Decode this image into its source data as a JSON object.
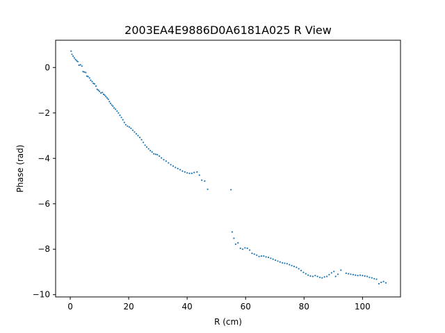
{
  "chart_data": {
    "type": "scatter",
    "title": "2003EA4E9886D0A6181A025 R View",
    "xlabel": "R (cm)",
    "ylabel": "Phase (rad)",
    "xlim": [
      -5,
      113
    ],
    "ylim": [
      -10.1,
      1.2
    ],
    "xticks": [
      0,
      20,
      40,
      60,
      80,
      100
    ],
    "yticks": [
      0,
      -2,
      -4,
      -6,
      -8,
      -10
    ],
    "grid": false,
    "marker_color": "#1f77b4",
    "series": [
      {
        "points": [
          [
            0.3,
            0.72
          ],
          [
            0.6,
            0.58
          ],
          [
            1.0,
            0.5
          ],
          [
            1.4,
            0.42
          ],
          [
            1.8,
            0.35
          ],
          [
            2.2,
            0.3
          ],
          [
            2.6,
            0.26
          ],
          [
            3.0,
            0.1
          ],
          [
            3.5,
            0.12
          ],
          [
            4.0,
            0.06
          ],
          [
            4.4,
            -0.18
          ],
          [
            4.8,
            -0.2
          ],
          [
            5.3,
            -0.22
          ],
          [
            5.7,
            -0.38
          ],
          [
            6.1,
            -0.4
          ],
          [
            6.6,
            -0.46
          ],
          [
            7.0,
            -0.56
          ],
          [
            7.5,
            -0.62
          ],
          [
            7.9,
            -0.7
          ],
          [
            8.3,
            -0.72
          ],
          [
            8.8,
            -0.82
          ],
          [
            9.2,
            -0.96
          ],
          [
            9.6,
            -1.0
          ],
          [
            10.0,
            -1.05
          ],
          [
            10.5,
            -1.12
          ],
          [
            11.0,
            -1.1
          ],
          [
            11.4,
            -1.18
          ],
          [
            11.8,
            -1.22
          ],
          [
            12.2,
            -1.28
          ],
          [
            12.6,
            -1.34
          ],
          [
            13.0,
            -1.4
          ],
          [
            13.4,
            -1.5
          ],
          [
            13.8,
            -1.58
          ],
          [
            14.2,
            -1.65
          ],
          [
            14.6,
            -1.7
          ],
          [
            15.0,
            -1.78
          ],
          [
            15.5,
            -1.84
          ],
          [
            16.0,
            -1.92
          ],
          [
            16.5,
            -2.0
          ],
          [
            17.0,
            -2.1
          ],
          [
            17.5,
            -2.2
          ],
          [
            18.0,
            -2.3
          ],
          [
            18.5,
            -2.42
          ],
          [
            19.0,
            -2.52
          ],
          [
            19.6,
            -2.58
          ],
          [
            20.2,
            -2.62
          ],
          [
            20.8,
            -2.68
          ],
          [
            21.4,
            -2.76
          ],
          [
            22.0,
            -2.84
          ],
          [
            22.6,
            -2.92
          ],
          [
            23.2,
            -3.0
          ],
          [
            23.8,
            -3.08
          ],
          [
            24.4,
            -3.18
          ],
          [
            25.0,
            -3.3
          ],
          [
            25.6,
            -3.42
          ],
          [
            26.2,
            -3.5
          ],
          [
            26.8,
            -3.58
          ],
          [
            27.4,
            -3.66
          ],
          [
            28.0,
            -3.72
          ],
          [
            28.6,
            -3.8
          ],
          [
            29.2,
            -3.82
          ],
          [
            29.8,
            -3.84
          ],
          [
            30.5,
            -3.9
          ],
          [
            31.2,
            -3.98
          ],
          [
            32.0,
            -4.06
          ],
          [
            32.8,
            -4.12
          ],
          [
            33.6,
            -4.2
          ],
          [
            34.4,
            -4.28
          ],
          [
            35.2,
            -4.34
          ],
          [
            36.0,
            -4.4
          ],
          [
            36.8,
            -4.45
          ],
          [
            37.6,
            -4.5
          ],
          [
            38.4,
            -4.56
          ],
          [
            39.2,
            -4.6
          ],
          [
            40.0,
            -4.64
          ],
          [
            40.8,
            -4.66
          ],
          [
            41.6,
            -4.66
          ],
          [
            42.4,
            -4.62
          ],
          [
            43.4,
            -4.6
          ],
          [
            44.2,
            -4.74
          ],
          [
            45.0,
            -4.96
          ],
          [
            46.0,
            -5.0
          ],
          [
            47.0,
            -5.36
          ],
          [
            55.0,
            -5.38
          ],
          [
            55.4,
            -7.24
          ],
          [
            56.0,
            -7.52
          ],
          [
            56.6,
            -7.78
          ],
          [
            57.4,
            -7.72
          ],
          [
            58.2,
            -7.96
          ],
          [
            59.0,
            -8.0
          ],
          [
            59.8,
            -7.94
          ],
          [
            60.6,
            -7.96
          ],
          [
            61.4,
            -8.04
          ],
          [
            62.2,
            -8.18
          ],
          [
            63.0,
            -8.22
          ],
          [
            63.8,
            -8.26
          ],
          [
            64.6,
            -8.32
          ],
          [
            65.4,
            -8.3
          ],
          [
            66.2,
            -8.3
          ],
          [
            67.0,
            -8.34
          ],
          [
            67.8,
            -8.36
          ],
          [
            68.6,
            -8.4
          ],
          [
            69.4,
            -8.44
          ],
          [
            70.2,
            -8.48
          ],
          [
            71.0,
            -8.52
          ],
          [
            71.8,
            -8.56
          ],
          [
            72.6,
            -8.6
          ],
          [
            73.4,
            -8.62
          ],
          [
            74.2,
            -8.64
          ],
          [
            75.0,
            -8.68
          ],
          [
            75.8,
            -8.72
          ],
          [
            76.6,
            -8.76
          ],
          [
            77.4,
            -8.8
          ],
          [
            78.2,
            -8.86
          ],
          [
            79.0,
            -8.94
          ],
          [
            79.8,
            -9.02
          ],
          [
            80.6,
            -9.08
          ],
          [
            81.4,
            -9.14
          ],
          [
            82.2,
            -9.18
          ],
          [
            83.0,
            -9.2
          ],
          [
            83.8,
            -9.16
          ],
          [
            84.6,
            -9.2
          ],
          [
            85.4,
            -9.24
          ],
          [
            86.2,
            -9.26
          ],
          [
            87.0,
            -9.22
          ],
          [
            87.8,
            -9.2
          ],
          [
            88.6,
            -9.12
          ],
          [
            89.4,
            -9.04
          ],
          [
            90.2,
            -8.98
          ],
          [
            90.8,
            -9.2
          ],
          [
            91.6,
            -9.1
          ],
          [
            92.6,
            -8.92
          ],
          [
            94.4,
            -9.06
          ],
          [
            95.2,
            -9.08
          ],
          [
            96.0,
            -9.1
          ],
          [
            96.8,
            -9.12
          ],
          [
            97.6,
            -9.14
          ],
          [
            98.4,
            -9.16
          ],
          [
            99.2,
            -9.14
          ],
          [
            100.0,
            -9.16
          ],
          [
            100.8,
            -9.18
          ],
          [
            101.6,
            -9.2
          ],
          [
            102.4,
            -9.24
          ],
          [
            103.2,
            -9.26
          ],
          [
            104.0,
            -9.3
          ],
          [
            104.8,
            -9.32
          ],
          [
            105.6,
            -9.52
          ],
          [
            106.4,
            -9.46
          ],
          [
            107.2,
            -9.42
          ],
          [
            108.0,
            -9.48
          ]
        ]
      }
    ]
  }
}
